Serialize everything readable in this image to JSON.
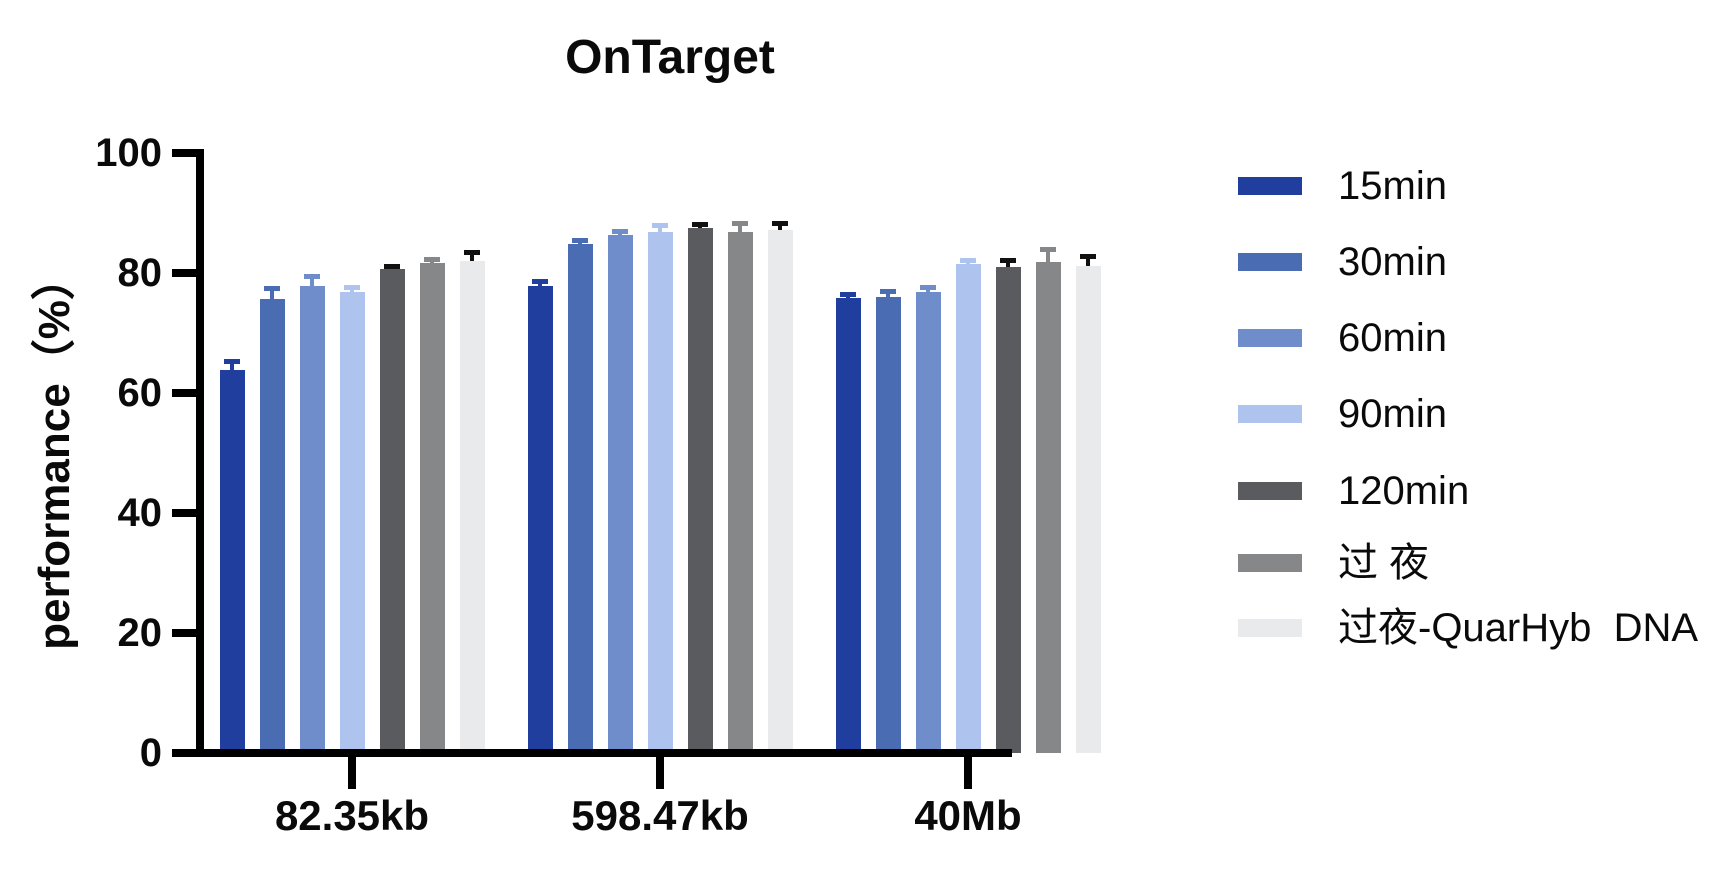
{
  "title": "OnTarget",
  "chart_data": {
    "type": "bar",
    "title": "OnTarget",
    "xlabel": "",
    "ylabel": "performance（%）",
    "ylim": [
      0,
      100
    ],
    "yticks": [
      0,
      20,
      40,
      60,
      80,
      100
    ],
    "grid": false,
    "legend_position": "right",
    "error_bars": true,
    "categories": [
      "82.35kb",
      "598.47kb",
      "40Mb"
    ],
    "series": [
      {
        "name": "15min",
        "color": "#1F3E9E",
        "error_color": "#1F3E9E",
        "values": [
          63.8,
          77.8,
          75.8
        ],
        "errors": [
          1.2,
          0.6,
          0.4
        ]
      },
      {
        "name": "30min",
        "color": "#496CB3",
        "error_color": "#496CB3",
        "values": [
          75.6,
          84.8,
          76.0
        ],
        "errors": [
          1.6,
          0.3,
          0.6
        ]
      },
      {
        "name": "60min",
        "color": "#6F8DCB",
        "error_color": "#6F8DCB",
        "values": [
          77.8,
          86.3,
          76.8
        ],
        "errors": [
          1.4,
          0.4,
          0.5
        ]
      },
      {
        "name": "90min",
        "color": "#AFC3EF",
        "error_color": "#AFC3EF",
        "values": [
          76.9,
          86.8,
          81.5
        ],
        "errors": [
          0.5,
          0.8,
          0.4
        ]
      },
      {
        "name": "120min",
        "color": "#595B5E",
        "error_color": "#111111",
        "values": [
          80.7,
          87.5,
          81.0
        ],
        "errors": [
          0.2,
          0.3,
          0.8
        ]
      },
      {
        "name": "过 夜",
        "color": "#858789",
        "error_color": "#858789",
        "values": [
          81.6,
          86.9,
          81.9
        ],
        "errors": [
          0.4,
          1.1,
          1.8
        ]
      },
      {
        "name": "过夜-QuarHyb  DNA",
        "color": "#E9EAEC",
        "error_color": "#111111",
        "values": [
          82.0,
          87.1,
          81.2
        ],
        "errors": [
          1.2,
          0.9,
          1.3
        ]
      }
    ]
  }
}
